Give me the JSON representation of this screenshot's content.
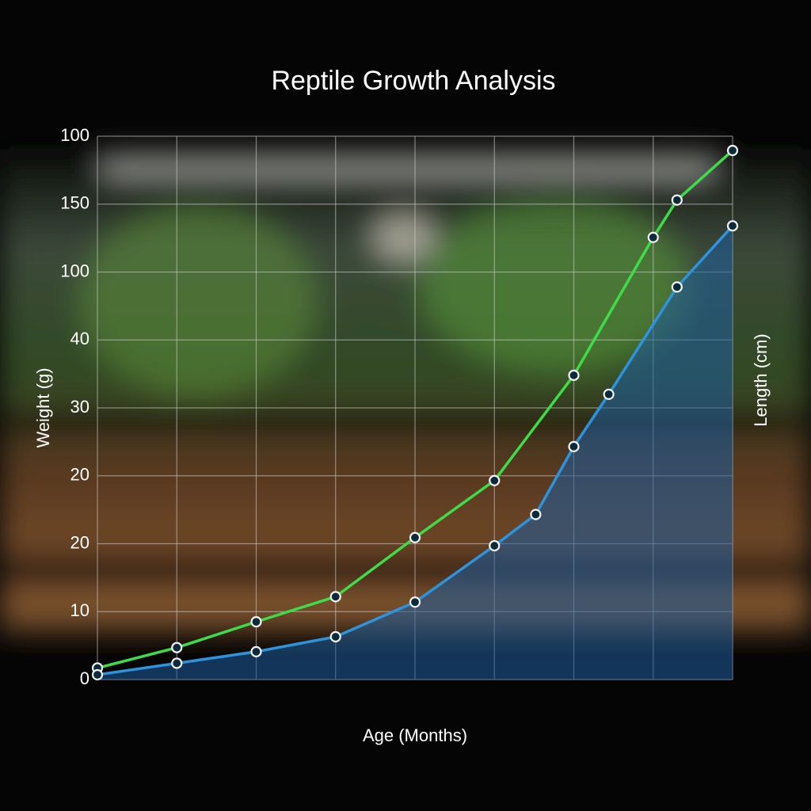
{
  "chart_data": {
    "type": "line",
    "title": "Reptile Growth Analysis",
    "x_label": "Age (Months)",
    "y_label": "Weight (g)",
    "y2_label": "Length (cm)",
    "xlim": [
      0,
      8
    ],
    "xticks": [
      0,
      1,
      2,
      3,
      4,
      5,
      6,
      7,
      8
    ],
    "ylim": [
      0,
      8
    ],
    "yticks": [
      {
        "value": 0,
        "label": "0"
      },
      {
        "value": 1,
        "label": "10"
      },
      {
        "value": 2,
        "label": "20"
      },
      {
        "value": 3,
        "label": "20"
      },
      {
        "value": 4,
        "label": "30"
      },
      {
        "value": 5,
        "label": "40"
      },
      {
        "value": 6,
        "label": "100"
      },
      {
        "value": 7,
        "label": "150"
      },
      {
        "value": 8,
        "label": "100"
      }
    ],
    "grid": true,
    "series": [
      {
        "color": "#3fdc4a",
        "fill": false,
        "x": [
          0,
          1,
          2,
          3,
          4,
          5,
          6,
          7,
          7.3,
          8
        ],
        "values": [
          0.17,
          0.47,
          0.85,
          1.22,
          2.09,
          2.93,
          4.48,
          6.51,
          7.06,
          7.79
        ]
      },
      {
        "color": "#2e93dc",
        "fill": true,
        "x": [
          0,
          1,
          2,
          3,
          4,
          5,
          5.52,
          6,
          6.44,
          7.3,
          8
        ],
        "values": [
          0.07,
          0.24,
          0.41,
          0.63,
          1.14,
          1.97,
          2.43,
          3.43,
          4.2,
          5.78,
          6.68
        ]
      }
    ]
  }
}
